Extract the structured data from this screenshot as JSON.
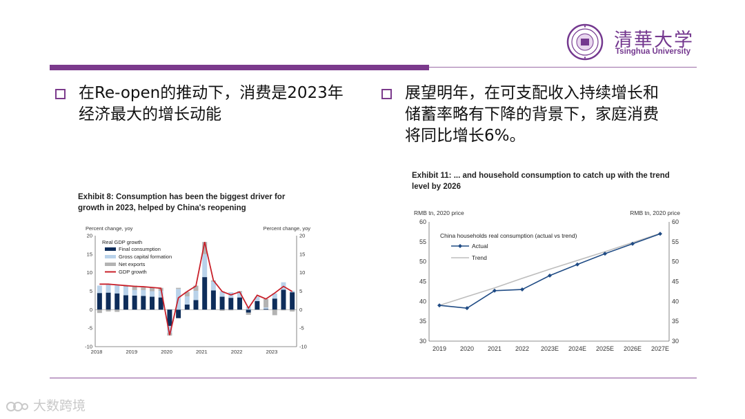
{
  "logo": {
    "cn_name": "清華大学",
    "en_name": "Tsinghua University"
  },
  "bullets": [
    {
      "text": "在Re-open的推动下，消费是2023年经济最大的增长动能"
    },
    {
      "text": "展望明年，在可支配收入持续增长和储蓄率略有下降的背景下，家庭消费将同比增长6%。"
    }
  ],
  "watermark": {
    "text": "大数跨境"
  },
  "colors": {
    "accent": "#7b3a8c",
    "final_consumption": "#0e2d5a",
    "gross_capital": "#b9d2ea",
    "net_exports": "#b3b3b3",
    "gdp_growth": "#c8202a",
    "actual": "#1f4b84",
    "trend": "#bdbdbd"
  },
  "chart_data": [
    {
      "type": "bar",
      "title": "Exhibit 8: Consumption has been the biggest driver for growth in 2023, helped by China's reopening",
      "ylabel_left": "Percent change, yoy",
      "ylabel_right": "Percent change, yoy",
      "ylim": [
        -10,
        20
      ],
      "yticks": [
        -10,
        -5,
        0,
        5,
        10,
        15,
        20
      ],
      "legend_title": "Real GDP growth",
      "legend_placement": "top-left",
      "xtick_labels": [
        "2018",
        "2019",
        "2020",
        "2021",
        "2022",
        "2023"
      ],
      "categories": [
        "2018Q1",
        "2018Q2",
        "2018Q3",
        "2018Q4",
        "2019Q1",
        "2019Q2",
        "2019Q3",
        "2019Q4",
        "2020Q1",
        "2020Q2",
        "2020Q3",
        "2020Q4",
        "2021Q1",
        "2021Q2",
        "2021Q3",
        "2021Q4",
        "2022Q1",
        "2022Q2",
        "2022Q3",
        "2022Q4",
        "2023Q1",
        "2023Q2",
        "2023Q3"
      ],
      "series": [
        {
          "name": "Final consumption",
          "values": [
            4.5,
            4.6,
            4.4,
            3.9,
            3.8,
            3.7,
            3.5,
            3.3,
            -4.4,
            -2.3,
            1.4,
            2.6,
            8.8,
            5.2,
            3.5,
            3.2,
            3.3,
            -0.8,
            2.3,
            0.2,
            3.0,
            5.4,
            4.7
          ]
        },
        {
          "name": "Gross capital formation",
          "values": [
            2.0,
            2.3,
            2.3,
            2.3,
            1.5,
            1.6,
            1.5,
            1.8,
            -1.9,
            5.6,
            2.2,
            2.5,
            6.2,
            2.4,
            1.5,
            1.5,
            1.4,
            0.8,
            1.2,
            0.4,
            1.4,
            2.0,
            0.4
          ]
        },
        {
          "name": "Net exports",
          "values": [
            -0.9,
            -0.5,
            -0.6,
            0.3,
            1.2,
            0.7,
            1.0,
            0.8,
            -0.7,
            0.3,
            1.2,
            1.4,
            3.3,
            0.3,
            -0.3,
            -0.2,
            0.3,
            -0.6,
            -0.1,
            2.3,
            -1.5,
            -0.2,
            -0.5
          ]
        },
        {
          "name": "GDP growth",
          "type": "line",
          "values": [
            6.9,
            6.9,
            6.7,
            6.5,
            6.3,
            6.2,
            6.0,
            5.8,
            -6.9,
            3.2,
            4.9,
            6.4,
            18.3,
            7.9,
            4.9,
            4.0,
            4.8,
            0.4,
            3.9,
            2.9,
            4.5,
            6.3,
            4.9
          ]
        }
      ]
    },
    {
      "type": "line",
      "title": "Exhibit 11: ... and household consumption to catch up with the trend level by 2026",
      "ylabel_left": "RMB tn, 2020 price",
      "ylabel_right": "RMB tn, 2020 price",
      "legend_title": "China households real consumption (actual vs trend)",
      "legend_placement": "top-left",
      "ylim": [
        30,
        60
      ],
      "yticks": [
        30,
        35,
        40,
        45,
        50,
        55,
        60
      ],
      "categories": [
        "2019",
        "2020",
        "2021",
        "2022",
        "2023E",
        "2024E",
        "2025E",
        "2026E",
        "2027E"
      ],
      "series": [
        {
          "name": "Actual",
          "values": [
            39.0,
            38.3,
            42.7,
            43.0,
            46.5,
            49.3,
            52.0,
            54.5,
            57.0
          ]
        },
        {
          "name": "Trend",
          "values": [
            39.0,
            41.2,
            43.4,
            45.8,
            48.1,
            50.3,
            52.5,
            54.8,
            57.1
          ]
        }
      ]
    }
  ]
}
